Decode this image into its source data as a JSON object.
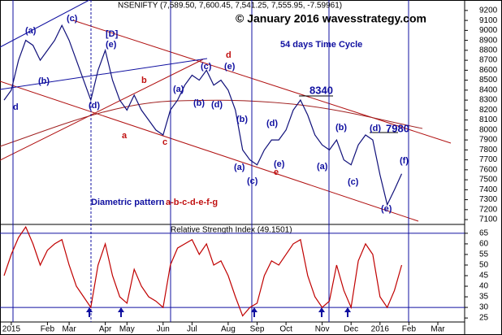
{
  "chart_data": [
    {
      "type": "line",
      "title": "NSENIFTY (7,589.50, 7,600.45, 7,541.25, 7,555.95, -7.59961)",
      "subtitle": "© January 2016 wavesstrategy.com",
      "annotations": [
        "54 days Time Cycle",
        "Diametric pattern",
        "a-b-c-d-e-f-g",
        "8340",
        "7980",
        "(a)",
        "(b)",
        "(c)",
        "[D]",
        "(e)",
        "(d)",
        "b",
        "a",
        "c",
        "(a)",
        "(b)",
        "(c)",
        "(d)",
        "(e)",
        "d",
        "(b)",
        "(d)",
        "(e)",
        "e",
        "(c)",
        "(a)",
        "(b)",
        "(d)",
        "(a)",
        "(c)",
        "(e)",
        "(f)",
        "d"
      ],
      "categories": [
        null,
        null,
        null,
        null,
        null,
        null,
        null,
        null,
        null,
        null,
        null,
        null,
        null,
        null,
        null,
        null,
        null,
        null,
        null,
        null,
        null,
        null,
        null,
        null,
        null,
        null,
        null,
        null,
        null,
        null,
        null,
        null,
        null,
        null,
        null,
        null,
        null,
        null,
        null,
        null,
        null,
        null,
        null,
        null,
        null,
        null,
        null,
        null,
        null,
        null,
        null,
        null,
        null,
        null,
        null,
        null,
        null,
        null,
        null,
        null,
        null,
        null,
        null
      ],
      "series": [
        {
          "name": "NSENIFTY",
          "color": "#10107a",
          "values": [
            8300,
            8400,
            8700,
            8900,
            8850,
            8700,
            8800,
            8900,
            9050,
            8900,
            8700,
            8500,
            8300,
            8600,
            8800,
            8500,
            8300,
            8200,
            8350,
            8200,
            8100,
            8000,
            7950,
            8200,
            8300,
            8450,
            8550,
            8500,
            8600,
            8450,
            8500,
            8400,
            8200,
            7800,
            7700,
            7650,
            7800,
            7900,
            7900,
            8000,
            8200,
            8300,
            8150,
            7950,
            7850,
            7800,
            7900,
            7700,
            7650,
            7850,
            7950,
            7900,
            7550,
            7250,
            7400,
            7560,
            null,
            null,
            null,
            null,
            null,
            null,
            null
          ]
        }
      ],
      "ylim": [
        7060,
        9305
      ],
      "yticks": [
        7100,
        7200,
        7300,
        7400,
        7500,
        7600,
        7700,
        7800,
        7900,
        8000,
        8100,
        8200,
        8300,
        8400,
        8500,
        8600,
        8700,
        8800,
        8900,
        9000,
        9100,
        9200
      ]
    },
    {
      "type": "line",
      "title": "Relative Strength Index (49.1501)",
      "categories": [
        null,
        "2015",
        null,
        null,
        null,
        null,
        "Feb",
        null,
        null,
        "Mar",
        null,
        null,
        null,
        null,
        "Apr",
        null,
        null,
        "May",
        null,
        null,
        null,
        null,
        "Jun",
        null,
        null,
        null,
        "Jul",
        null,
        null,
        null,
        null,
        "Aug",
        null,
        null,
        null,
        "Sep",
        null,
        null,
        null,
        "Oct",
        null,
        null,
        null,
        null,
        "Nov",
        null,
        null,
        null,
        "Dec",
        null,
        null,
        null,
        "2016",
        null,
        null,
        null,
        "Feb",
        null,
        null,
        null,
        "Mar",
        null,
        null
      ],
      "series": [
        {
          "name": "RSI",
          "color": "#c00000",
          "values": [
            45,
            55,
            63,
            68,
            60,
            50,
            57,
            60,
            62,
            50,
            40,
            35,
            30,
            50,
            60,
            45,
            35,
            32,
            48,
            40,
            35,
            33,
            30,
            50,
            58,
            60,
            62,
            55,
            60,
            50,
            52,
            45,
            35,
            26,
            30,
            32,
            45,
            52,
            50,
            55,
            60,
            62,
            45,
            35,
            30,
            33,
            50,
            38,
            30,
            52,
            60,
            55,
            35,
            30,
            38,
            50,
            null,
            null,
            null,
            null,
            null,
            null,
            null
          ]
        }
      ],
      "levels": [
        65,
        30
      ],
      "ylim": [
        23.5,
        68.8
      ],
      "yticks": [
        25,
        30,
        35,
        40,
        45,
        50,
        55,
        60,
        65
      ]
    }
  ]
}
